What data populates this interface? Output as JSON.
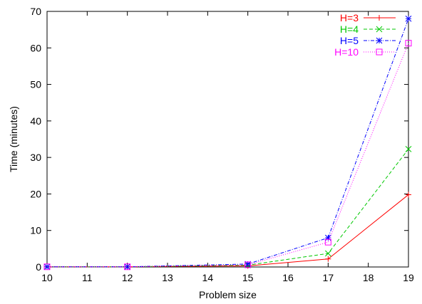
{
  "chart_data": {
    "type": "line",
    "title": "",
    "xlabel": "Problem size",
    "ylabel": "Time (minutes)",
    "xlim": [
      10,
      19
    ],
    "ylim": [
      0,
      70
    ],
    "xticks": [
      "10",
      "11",
      "12",
      "13",
      "14",
      "15",
      "16",
      "17",
      "18",
      "19"
    ],
    "yticks": [
      "0",
      "10",
      "20",
      "30",
      "40",
      "50",
      "60",
      "70"
    ],
    "grid": false,
    "legend_position": "top-right",
    "series": [
      {
        "name": "H=3",
        "color": "#ff0000",
        "dash": "solid",
        "marker": "plus",
        "x": [
          10,
          12,
          15,
          17,
          19
        ],
        "y": [
          0.05,
          0.05,
          0.3,
          2.2,
          19.8
        ]
      },
      {
        "name": "H=4",
        "color": "#00c800",
        "dash": "dashed",
        "marker": "cross",
        "x": [
          10,
          12,
          15,
          17,
          19
        ],
        "y": [
          0.05,
          0.05,
          0.5,
          3.7,
          32.3
        ]
      },
      {
        "name": "H=5",
        "color": "#0000ff",
        "dash": "dotdash",
        "marker": "star",
        "x": [
          10,
          12,
          15,
          17,
          19
        ],
        "y": [
          0.05,
          0.05,
          0.8,
          8.0,
          68.0
        ]
      },
      {
        "name": "H=10",
        "color": "#ff00ff",
        "dash": "dotted",
        "marker": "square",
        "x": [
          10,
          12,
          15,
          17,
          19
        ],
        "y": [
          0.05,
          0.05,
          0.6,
          6.8,
          61.3
        ]
      }
    ]
  }
}
